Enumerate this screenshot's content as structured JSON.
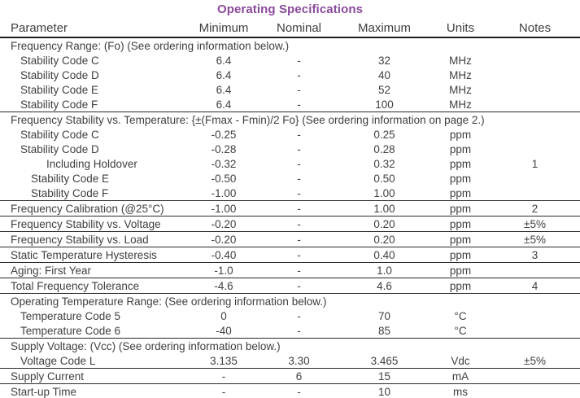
{
  "title": "Operating Specifications",
  "colors": {
    "title_accent": "#8a4a9b",
    "text": "#3f3f3f",
    "rule_line": "#2a2a2a"
  },
  "columns": [
    "Parameter",
    "Minimum",
    "Nominal",
    "Maximum",
    "Units",
    "Notes"
  ],
  "rows": [
    {
      "param": "Frequency Range: (Fo) (See ordering information below.)",
      "section": true,
      "indent": 0,
      "rule": false
    },
    {
      "param": "Stability Code C",
      "indent": 1,
      "min": "6.4",
      "nom": "-",
      "max": "32",
      "units": "MHz",
      "notes": "",
      "rule": false
    },
    {
      "param": "Stability Code D",
      "indent": 1,
      "min": "6.4",
      "nom": "-",
      "max": "40",
      "units": "MHz",
      "notes": "",
      "rule": false
    },
    {
      "param": "Stability Code E",
      "indent": 1,
      "min": "6.4",
      "nom": "-",
      "max": "52",
      "units": "MHz",
      "notes": "",
      "rule": false
    },
    {
      "param": "Stability Code F",
      "indent": 1,
      "min": "6.4",
      "nom": "-",
      "max": "100",
      "units": "MHz",
      "notes": "",
      "rule": true
    },
    {
      "param": "Frequency Stability vs. Temperature: {±(Fmax - Fmin)/2 Fo} (See ordering information on page 2.)",
      "section": true,
      "indent": 0,
      "rule": false
    },
    {
      "param": "Stability Code C",
      "indent": 1,
      "min": "-0.25",
      "nom": "-",
      "max": "0.25",
      "units": "ppm",
      "notes": "",
      "rule": false
    },
    {
      "param": "Stability Code D",
      "indent": 1,
      "min": "-0.28",
      "nom": "-",
      "max": "0.28",
      "units": "ppm",
      "notes": "",
      "rule": false
    },
    {
      "param": "Including Holdover",
      "indent": 3,
      "min": "-0.32",
      "nom": "-",
      "max": "0.32",
      "units": "ppm",
      "notes": "1",
      "rule": false
    },
    {
      "param": "Stability Code E",
      "indent": 2,
      "min": "-0.50",
      "nom": "-",
      "max": "0.50",
      "units": "ppm",
      "notes": "",
      "rule": false
    },
    {
      "param": "Stability Code F",
      "indent": 2,
      "min": "-1.00",
      "nom": "-",
      "max": "1.00",
      "units": "ppm",
      "notes": "",
      "rule": true
    },
    {
      "param": "Frequency Calibration (@25°C)",
      "indent": 0,
      "min": "-1.00",
      "nom": "-",
      "max": "1.00",
      "units": "ppm",
      "notes": "2",
      "rule": true
    },
    {
      "param": "Frequency Stability vs. Voltage",
      "indent": 0,
      "min": "-0.20",
      "nom": "-",
      "max": "0.20",
      "units": "ppm",
      "notes": "±5%",
      "rule": true
    },
    {
      "param": "Frequency Stability vs. Load",
      "indent": 0,
      "min": "-0.20",
      "nom": "-",
      "max": "0.20",
      "units": "ppm",
      "notes": "±5%",
      "rule": true
    },
    {
      "param": "Static Temperature Hysteresis",
      "indent": 0,
      "min": "-0.40",
      "nom": "-",
      "max": "0.40",
      "units": "ppm",
      "notes": "3",
      "rule": true
    },
    {
      "param": "Aging: First Year",
      "indent": 0,
      "min": "-1.0",
      "nom": "-",
      "max": "1.0",
      "units": "ppm",
      "notes": "",
      "rule": true
    },
    {
      "param": "Total Frequency Tolerance",
      "indent": 0,
      "min": "-4.6",
      "nom": "-",
      "max": "4.6",
      "units": "ppm",
      "notes": "4",
      "rule": true
    },
    {
      "param": "Operating Temperature Range: (See ordering information below.)",
      "section": true,
      "indent": 0,
      "rule": false
    },
    {
      "param": "Temperature Code 5",
      "indent": 1,
      "min": "0",
      "nom": "-",
      "max": "70",
      "units": "°C",
      "notes": "",
      "rule": false
    },
    {
      "param": "Temperature Code 6",
      "indent": 1,
      "min": "-40",
      "nom": "-",
      "max": "85",
      "units": "°C",
      "notes": "",
      "rule": true
    },
    {
      "param": "Supply Voltage: (Vcc) (See ordering information below.)",
      "section": true,
      "indent": 0,
      "rule": false
    },
    {
      "param": "Voltage Code L",
      "indent": 1,
      "min": "3.135",
      "nom": "3.30",
      "max": "3.465",
      "units": "Vdc",
      "notes": "±5%",
      "rule": true
    },
    {
      "param": "Supply Current",
      "indent": 0,
      "min": "-",
      "nom": "6",
      "max": "15",
      "units": "mA",
      "notes": "",
      "rule": true
    },
    {
      "param": "Start-up Time",
      "indent": 0,
      "min": "-",
      "nom": "-",
      "max": "10",
      "units": "ms",
      "notes": "",
      "rule": true
    }
  ]
}
